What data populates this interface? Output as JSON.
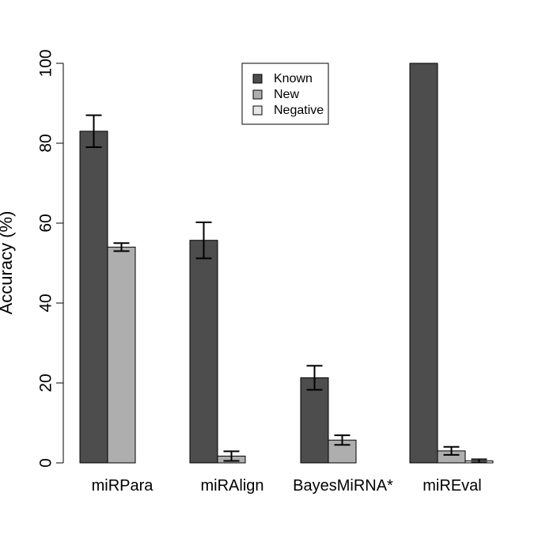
{
  "chart_data": {
    "type": "bar",
    "title": "",
    "xlabel": "",
    "ylabel": "Accuracy (%)",
    "ylim": [
      0,
      100
    ],
    "yticks": [
      0,
      20,
      40,
      60,
      80,
      100
    ],
    "grid": false,
    "legend_position": "top-center",
    "categories": [
      "miRPara",
      "miRAlign",
      "BayesMiRNA*",
      "miREval"
    ],
    "series": [
      {
        "name": "Known",
        "color": "#4d4d4d",
        "values": [
          83,
          55.7,
          21.3,
          100
        ],
        "errors": [
          4,
          4.5,
          3,
          null
        ]
      },
      {
        "name": "New",
        "color": "#aeaeae",
        "values": [
          54,
          1.7,
          5.7,
          3
        ],
        "errors": [
          1,
          1.2,
          1.2,
          1
        ]
      },
      {
        "name": "Negative",
        "color": "#e6e6e6",
        "values": [
          0,
          0,
          0,
          0.5
        ],
        "errors": [
          null,
          null,
          null,
          0.4
        ]
      }
    ]
  }
}
